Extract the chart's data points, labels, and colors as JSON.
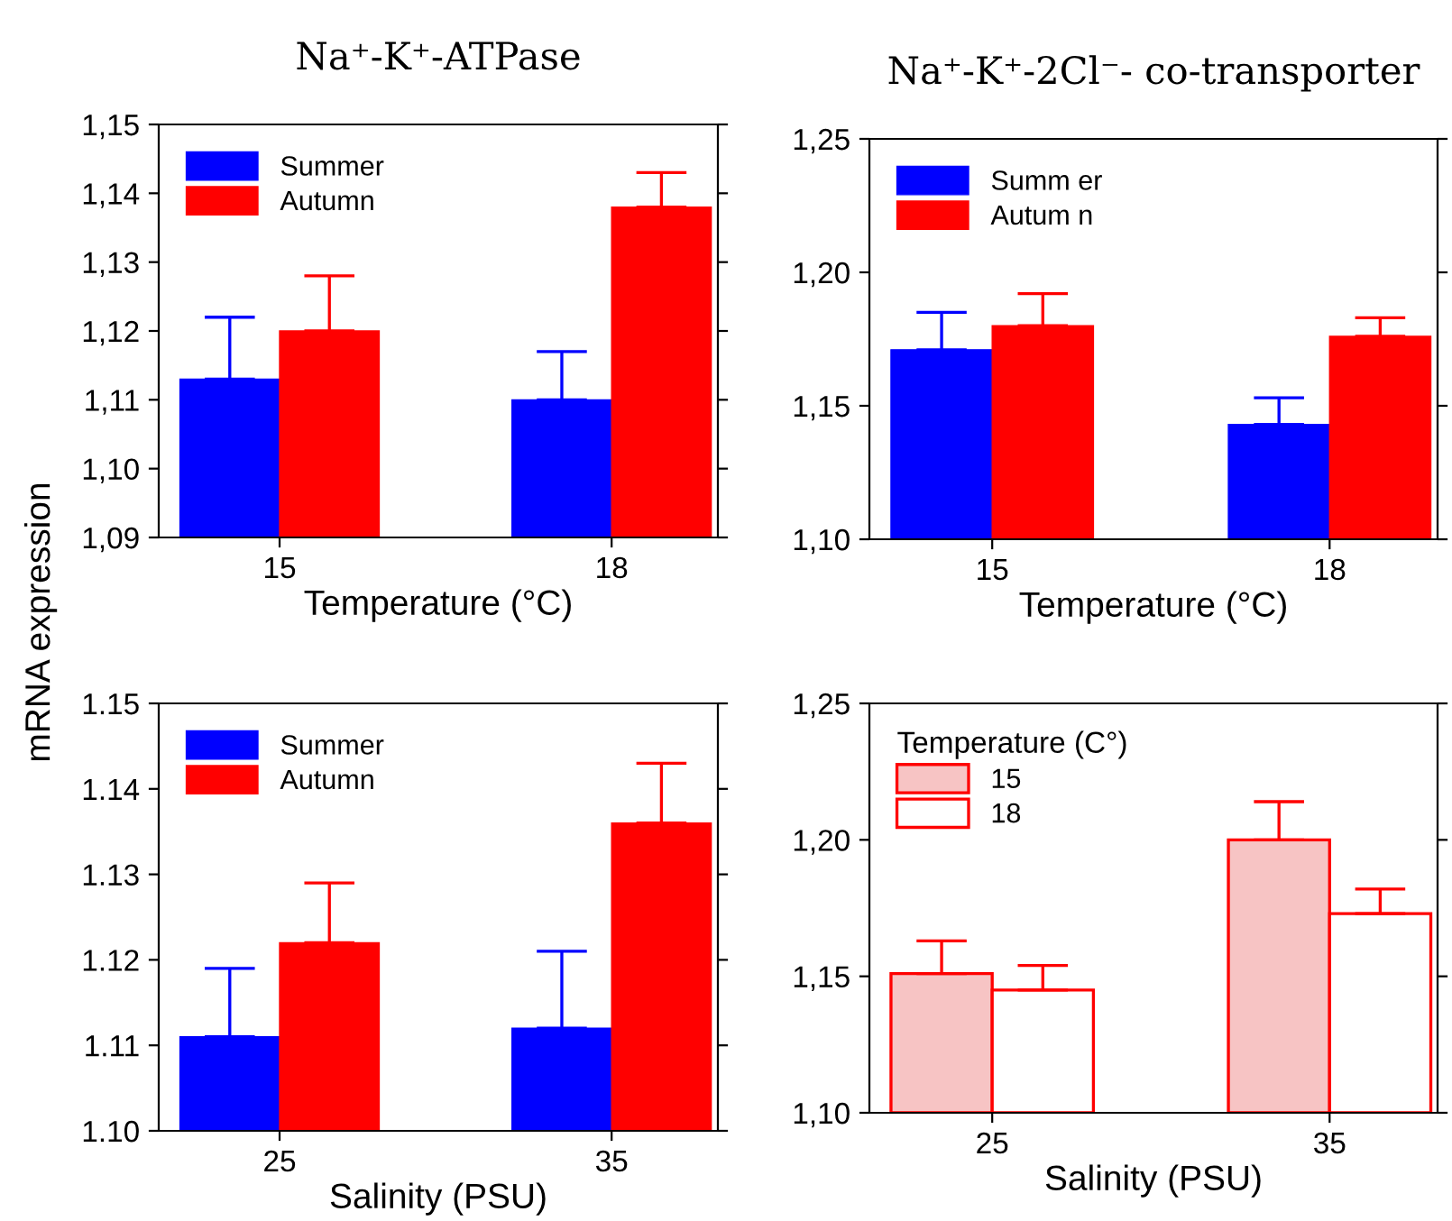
{
  "chart_data": [
    {
      "type": "bar",
      "title": "Na⁺-K⁺-ATPase",
      "xlabel": "Temperature (°C)",
      "ylabel": "mRNA expression",
      "categories": [
        "15",
        "18"
      ],
      "series": [
        {
          "name": "Summer",
          "color": "#0000ff",
          "values": [
            1.113,
            1.11
          ],
          "errors": [
            [
              1.113,
              1.122
            ],
            [
              1.11,
              1.117
            ]
          ]
        },
        {
          "name": "Autumn",
          "color": "#ff0000",
          "values": [
            1.12,
            1.138
          ],
          "errors": [
            [
              1.12,
              1.128
            ],
            [
              1.138,
              1.143
            ]
          ]
        }
      ],
      "ylim": [
        1.09,
        1.15
      ],
      "yticks": [
        {
          "value": 1.09,
          "label": "1,09"
        },
        {
          "value": 1.1,
          "label": "1,10"
        },
        {
          "value": 1.11,
          "label": "1,11"
        },
        {
          "value": 1.12,
          "label": "1,12"
        },
        {
          "value": 1.13,
          "label": "1,13"
        },
        {
          "value": 1.14,
          "label": "1,14"
        },
        {
          "value": 1.15,
          "label": "1,15"
        }
      ],
      "legend": "top left",
      "grid": false
    },
    {
      "type": "bar",
      "title": "Na⁺-K⁺-2Cl⁻- co-transporter",
      "xlabel": "Temperature (°C)",
      "categories": [
        "15",
        "18"
      ],
      "series": [
        {
          "name": "Summ er",
          "color": "#0000ff",
          "values": [
            1.171,
            1.143
          ],
          "errors": [
            [
              1.171,
              1.185
            ],
            [
              1.143,
              1.153
            ]
          ]
        },
        {
          "name": "Autum n",
          "color": "#ff0000",
          "values": [
            1.18,
            1.176
          ],
          "errors": [
            [
              1.18,
              1.192
            ],
            [
              1.176,
              1.183
            ]
          ]
        }
      ],
      "ylim": [
        1.1,
        1.25
      ],
      "yticks": [
        {
          "value": 1.1,
          "label": "1,10"
        },
        {
          "value": 1.15,
          "label": "1,15"
        },
        {
          "value": 1.2,
          "label": "1,20"
        },
        {
          "value": 1.25,
          "label": "1,25"
        }
      ],
      "legend": "top left",
      "grid": false
    },
    {
      "type": "bar",
      "xlabel": "Salinity (PSU)",
      "categories": [
        "25",
        "35"
      ],
      "series": [
        {
          "name": "Summer",
          "color": "#0000ff",
          "values": [
            1.111,
            1.112
          ],
          "errors": [
            [
              1.111,
              1.119
            ],
            [
              1.112,
              1.121
            ]
          ]
        },
        {
          "name": "Autumn",
          "color": "#ff0000",
          "values": [
            1.122,
            1.136
          ],
          "errors": [
            [
              1.122,
              1.129
            ],
            [
              1.136,
              1.143
            ]
          ]
        }
      ],
      "ylim": [
        1.1,
        1.15
      ],
      "yticks": [
        {
          "value": 1.1,
          "label": "1.10"
        },
        1.11,
        1.12,
        1.13,
        1.14,
        1.15
      ],
      "legend": "top left",
      "grid": false
    },
    {
      "type": "bar",
      "xlabel": "Salinity (PSU)",
      "legend_title": "Temperature (C°)",
      "categories": [
        "25",
        "35"
      ],
      "series": [
        {
          "name": "15",
          "color": "#f7c4c4",
          "values": [
            1.151,
            1.2
          ],
          "errors": [
            [
              1.151,
              1.163
            ],
            [
              1.2,
              1.214
            ]
          ]
        },
        {
          "name": "18",
          "color": "#ffffff",
          "values": [
            1.145,
            1.173
          ],
          "errors": [
            [
              1.145,
              1.154
            ],
            [
              1.173,
              1.182
            ]
          ]
        }
      ],
      "ylim": [
        1.1,
        1.25
      ],
      "yticks": [
        {
          "value": 1.1,
          "label": "1,10"
        },
        {
          "value": 1.15,
          "label": "1,15"
        },
        {
          "value": 1.2,
          "label": "1,20"
        },
        {
          "value": 1.25,
          "label": "1,25"
        }
      ],
      "legend": "top left",
      "grid": false
    }
  ]
}
